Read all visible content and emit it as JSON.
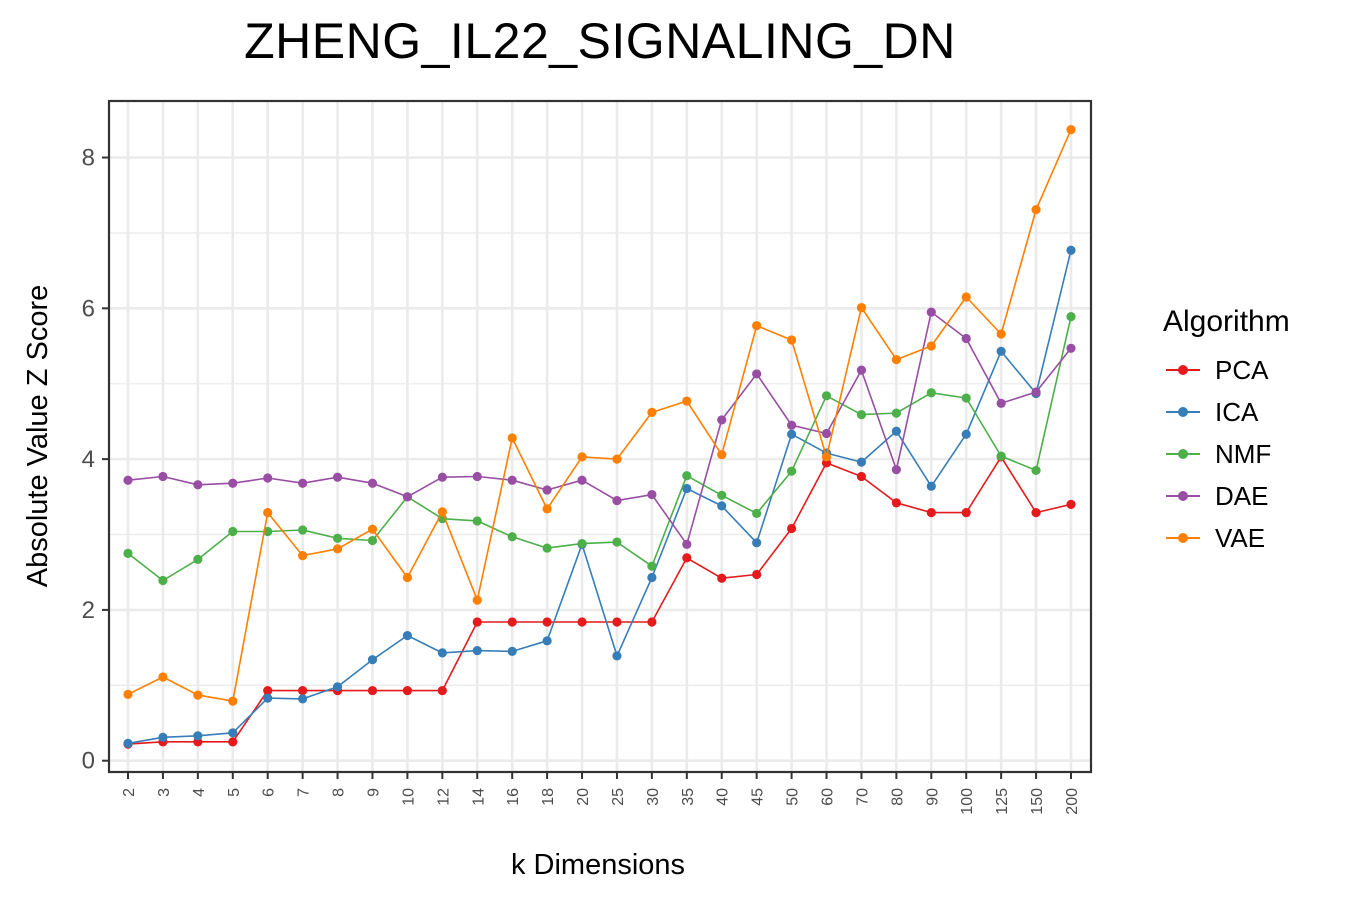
{
  "chart_data": {
    "type": "line",
    "title": "ZHENG_IL22_SIGNALING_DN",
    "xlabel": "k Dimensions",
    "ylabel": "Absolute Value Z Score",
    "ylim": [
      -0.15,
      8.75
    ],
    "y_ticks": [
      0,
      2,
      4,
      6,
      8
    ],
    "grid": true,
    "legend_title": "Algorithm",
    "legend_position": "right",
    "categories": [
      "2",
      "3",
      "4",
      "5",
      "6",
      "7",
      "8",
      "9",
      "10",
      "12",
      "14",
      "16",
      "18",
      "20",
      "25",
      "30",
      "35",
      "40",
      "45",
      "50",
      "60",
      "70",
      "80",
      "90",
      "100",
      "125",
      "150",
      "200"
    ],
    "series": [
      {
        "name": "PCA",
        "color": "#e41a1c",
        "values": [
          0.22,
          0.25,
          0.25,
          0.25,
          0.93,
          0.93,
          0.93,
          0.93,
          0.93,
          0.93,
          1.84,
          1.84,
          1.84,
          1.84,
          1.84,
          1.84,
          2.69,
          2.42,
          2.47,
          3.08,
          3.95,
          3.77,
          3.42,
          3.29,
          3.29,
          4.03,
          3.29,
          3.4
        ]
      },
      {
        "name": "ICA",
        "color": "#377eb8",
        "values": [
          0.23,
          0.31,
          0.33,
          0.37,
          0.83,
          0.82,
          0.98,
          1.34,
          1.66,
          1.43,
          1.46,
          1.45,
          1.59,
          2.87,
          1.39,
          2.43,
          3.61,
          3.38,
          2.89,
          4.33,
          4.08,
          3.96,
          4.37,
          3.64,
          4.33,
          5.43,
          4.87,
          6.77
        ]
      },
      {
        "name": "NMF",
        "color": "#4daf4a",
        "values": [
          2.75,
          2.39,
          2.67,
          3.04,
          3.04,
          3.06,
          2.95,
          2.92,
          3.5,
          3.21,
          3.18,
          2.97,
          2.82,
          2.88,
          2.9,
          2.58,
          3.78,
          3.52,
          3.28,
          3.84,
          4.84,
          4.59,
          4.61,
          4.88,
          4.81,
          4.04,
          3.85,
          5.89
        ]
      },
      {
        "name": "DAE",
        "color": "#984ea3",
        "values": [
          3.72,
          3.77,
          3.66,
          3.68,
          3.75,
          3.68,
          3.76,
          3.68,
          3.5,
          3.76,
          3.77,
          3.72,
          3.59,
          3.72,
          3.45,
          3.53,
          2.87,
          4.52,
          5.13,
          4.45,
          4.34,
          5.18,
          3.86,
          5.95,
          5.6,
          4.74,
          4.89,
          5.47
        ]
      },
      {
        "name": "VAE",
        "color": "#ff7f00",
        "values": [
          0.88,
          1.11,
          0.87,
          0.79,
          3.29,
          2.72,
          2.81,
          3.07,
          2.43,
          3.3,
          2.13,
          4.28,
          3.34,
          4.03,
          4.0,
          4.62,
          4.77,
          4.06,
          5.77,
          5.58,
          4.03,
          6.01,
          5.32,
          5.5,
          6.15,
          5.66,
          7.31,
          8.37
        ]
      }
    ]
  }
}
